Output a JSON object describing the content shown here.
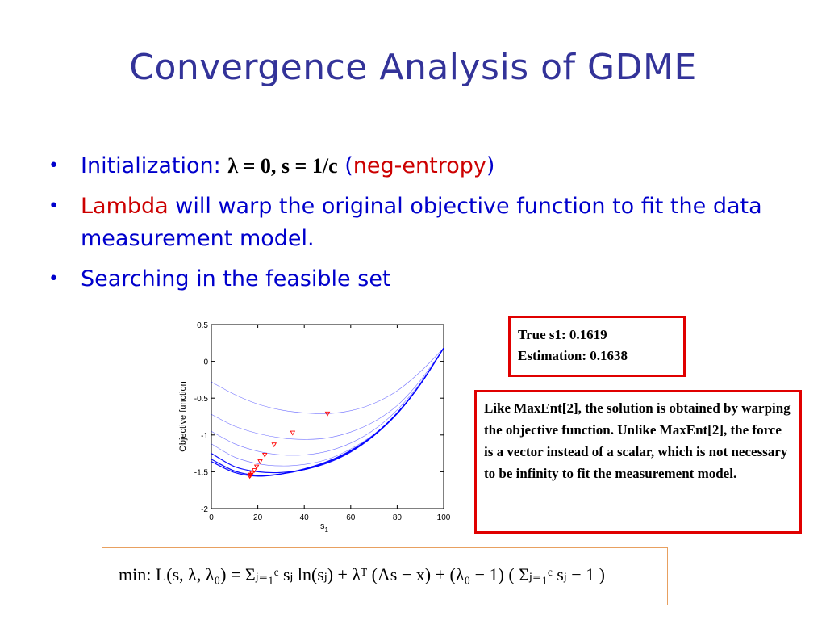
{
  "slide": {
    "title": "Convergence Analysis of GDME",
    "bullets": [
      {
        "prefix": "Initialization:",
        "math": "λ = 0,  s = 1/c",
        "paren_open": " (",
        "highlight": "neg-entropy",
        "paren_close": ")"
      },
      {
        "highlight": "Lambda",
        "text": " will warp the original objective function to fit the data measurement model."
      },
      {
        "text": "Searching in the feasible set"
      }
    ],
    "bullet_symbol": "•"
  },
  "result_box": {
    "line1": "True s1: 0.1619",
    "line2": "Estimation: 0.1638"
  },
  "note_box": {
    "text": "Like MaxEnt[2], the solution is obtained by warping the objective function. Unlike MaxEnt[2], the force is a vector instead of a scalar, which is not necessary to be infinity to fit the measurement model."
  },
  "formula": {
    "text": "min: L(s, λ, λ₀) = Σⱼ₌₁ᶜ sⱼ ln(sⱼ) + λᵀ (As − x) + (λ₀ − 1) ( Σⱼ₌₁ᶜ sⱼ − 1 )"
  },
  "colors": {
    "title": "#333399",
    "bullet_text": "#0000cc",
    "highlight": "#cc0000",
    "box_border": "#e00000",
    "curve": "#0000ff",
    "marker": "#ff0000"
  },
  "chart_data": {
    "type": "line",
    "xlabel": "s",
    "xlabel_subscript": "1",
    "ylabel": "Objective function",
    "xlim": [
      0,
      100
    ],
    "ylim": [
      -2,
      0.5
    ],
    "xticks": [
      0,
      20,
      40,
      60,
      80,
      100
    ],
    "xtick_labels": [
      "0",
      "20",
      "40",
      "60",
      "80",
      "100"
    ],
    "yticks": [
      0.5,
      0,
      -0.5,
      -1,
      -1.5,
      -2
    ],
    "ytick_labels": [
      "0.5",
      "0",
      "-0.5",
      "-1",
      "-1.5",
      "-2"
    ],
    "grid": false,
    "series": [
      {
        "values_x": [
          0,
          10,
          20,
          30,
          40,
          50,
          60,
          70,
          80,
          90,
          100
        ],
        "values_y": [
          -0.28,
          -0.45,
          -0.58,
          -0.66,
          -0.7,
          -0.71,
          -0.67,
          -0.57,
          -0.4,
          -0.14,
          0.18
        ]
      },
      {
        "values_x": [
          0,
          10,
          20,
          30,
          40,
          50,
          60,
          70,
          80,
          90,
          100
        ],
        "values_y": [
          -0.72,
          -0.88,
          -0.98,
          -1.04,
          -1.06,
          -1.04,
          -0.96,
          -0.82,
          -0.6,
          -0.26,
          0.18
        ]
      },
      {
        "values_x": [
          0,
          10,
          20,
          30,
          40,
          50,
          60,
          70,
          80,
          90,
          100
        ],
        "values_y": [
          -0.95,
          -1.12,
          -1.22,
          -1.27,
          -1.27,
          -1.22,
          -1.11,
          -0.93,
          -0.66,
          -0.29,
          0.18
        ]
      },
      {
        "values_x": [
          0,
          10,
          20,
          30,
          40,
          50,
          60,
          70,
          80,
          90,
          100
        ],
        "values_y": [
          -1.12,
          -1.3,
          -1.39,
          -1.42,
          -1.4,
          -1.33,
          -1.19,
          -0.99,
          -0.7,
          -0.3,
          0.18
        ]
      },
      {
        "values_x": [
          0,
          10,
          20,
          30,
          40,
          50,
          60,
          70,
          80,
          90,
          100
        ],
        "values_y": [
          -1.25,
          -1.43,
          -1.5,
          -1.51,
          -1.47,
          -1.38,
          -1.23,
          -1.01,
          -0.71,
          -0.31,
          0.18
        ]
      },
      {
        "values_x": [
          0,
          10,
          20,
          30,
          40,
          50,
          60,
          70,
          80,
          90,
          100
        ],
        "values_y": [
          -1.33,
          -1.49,
          -1.55,
          -1.53,
          -1.47,
          -1.37,
          -1.22,
          -1.0,
          -0.71,
          -0.31,
          0.18
        ]
      },
      {
        "values_x": [
          0,
          10,
          20,
          30,
          40,
          50,
          60,
          70,
          80,
          90,
          100
        ],
        "values_y": [
          -1.36,
          -1.51,
          -1.56,
          -1.53,
          -1.46,
          -1.36,
          -1.21,
          -1.0,
          -0.7,
          -0.31,
          0.18
        ]
      }
    ],
    "markers": {
      "x": [
        50,
        35,
        27,
        23,
        21,
        19.5,
        18.5,
        17.5,
        17,
        16.8,
        16.5
      ],
      "y": [
        -0.71,
        -0.97,
        -1.13,
        -1.27,
        -1.36,
        -1.43,
        -1.48,
        -1.52,
        -1.54,
        -1.55,
        -1.56
      ]
    }
  }
}
